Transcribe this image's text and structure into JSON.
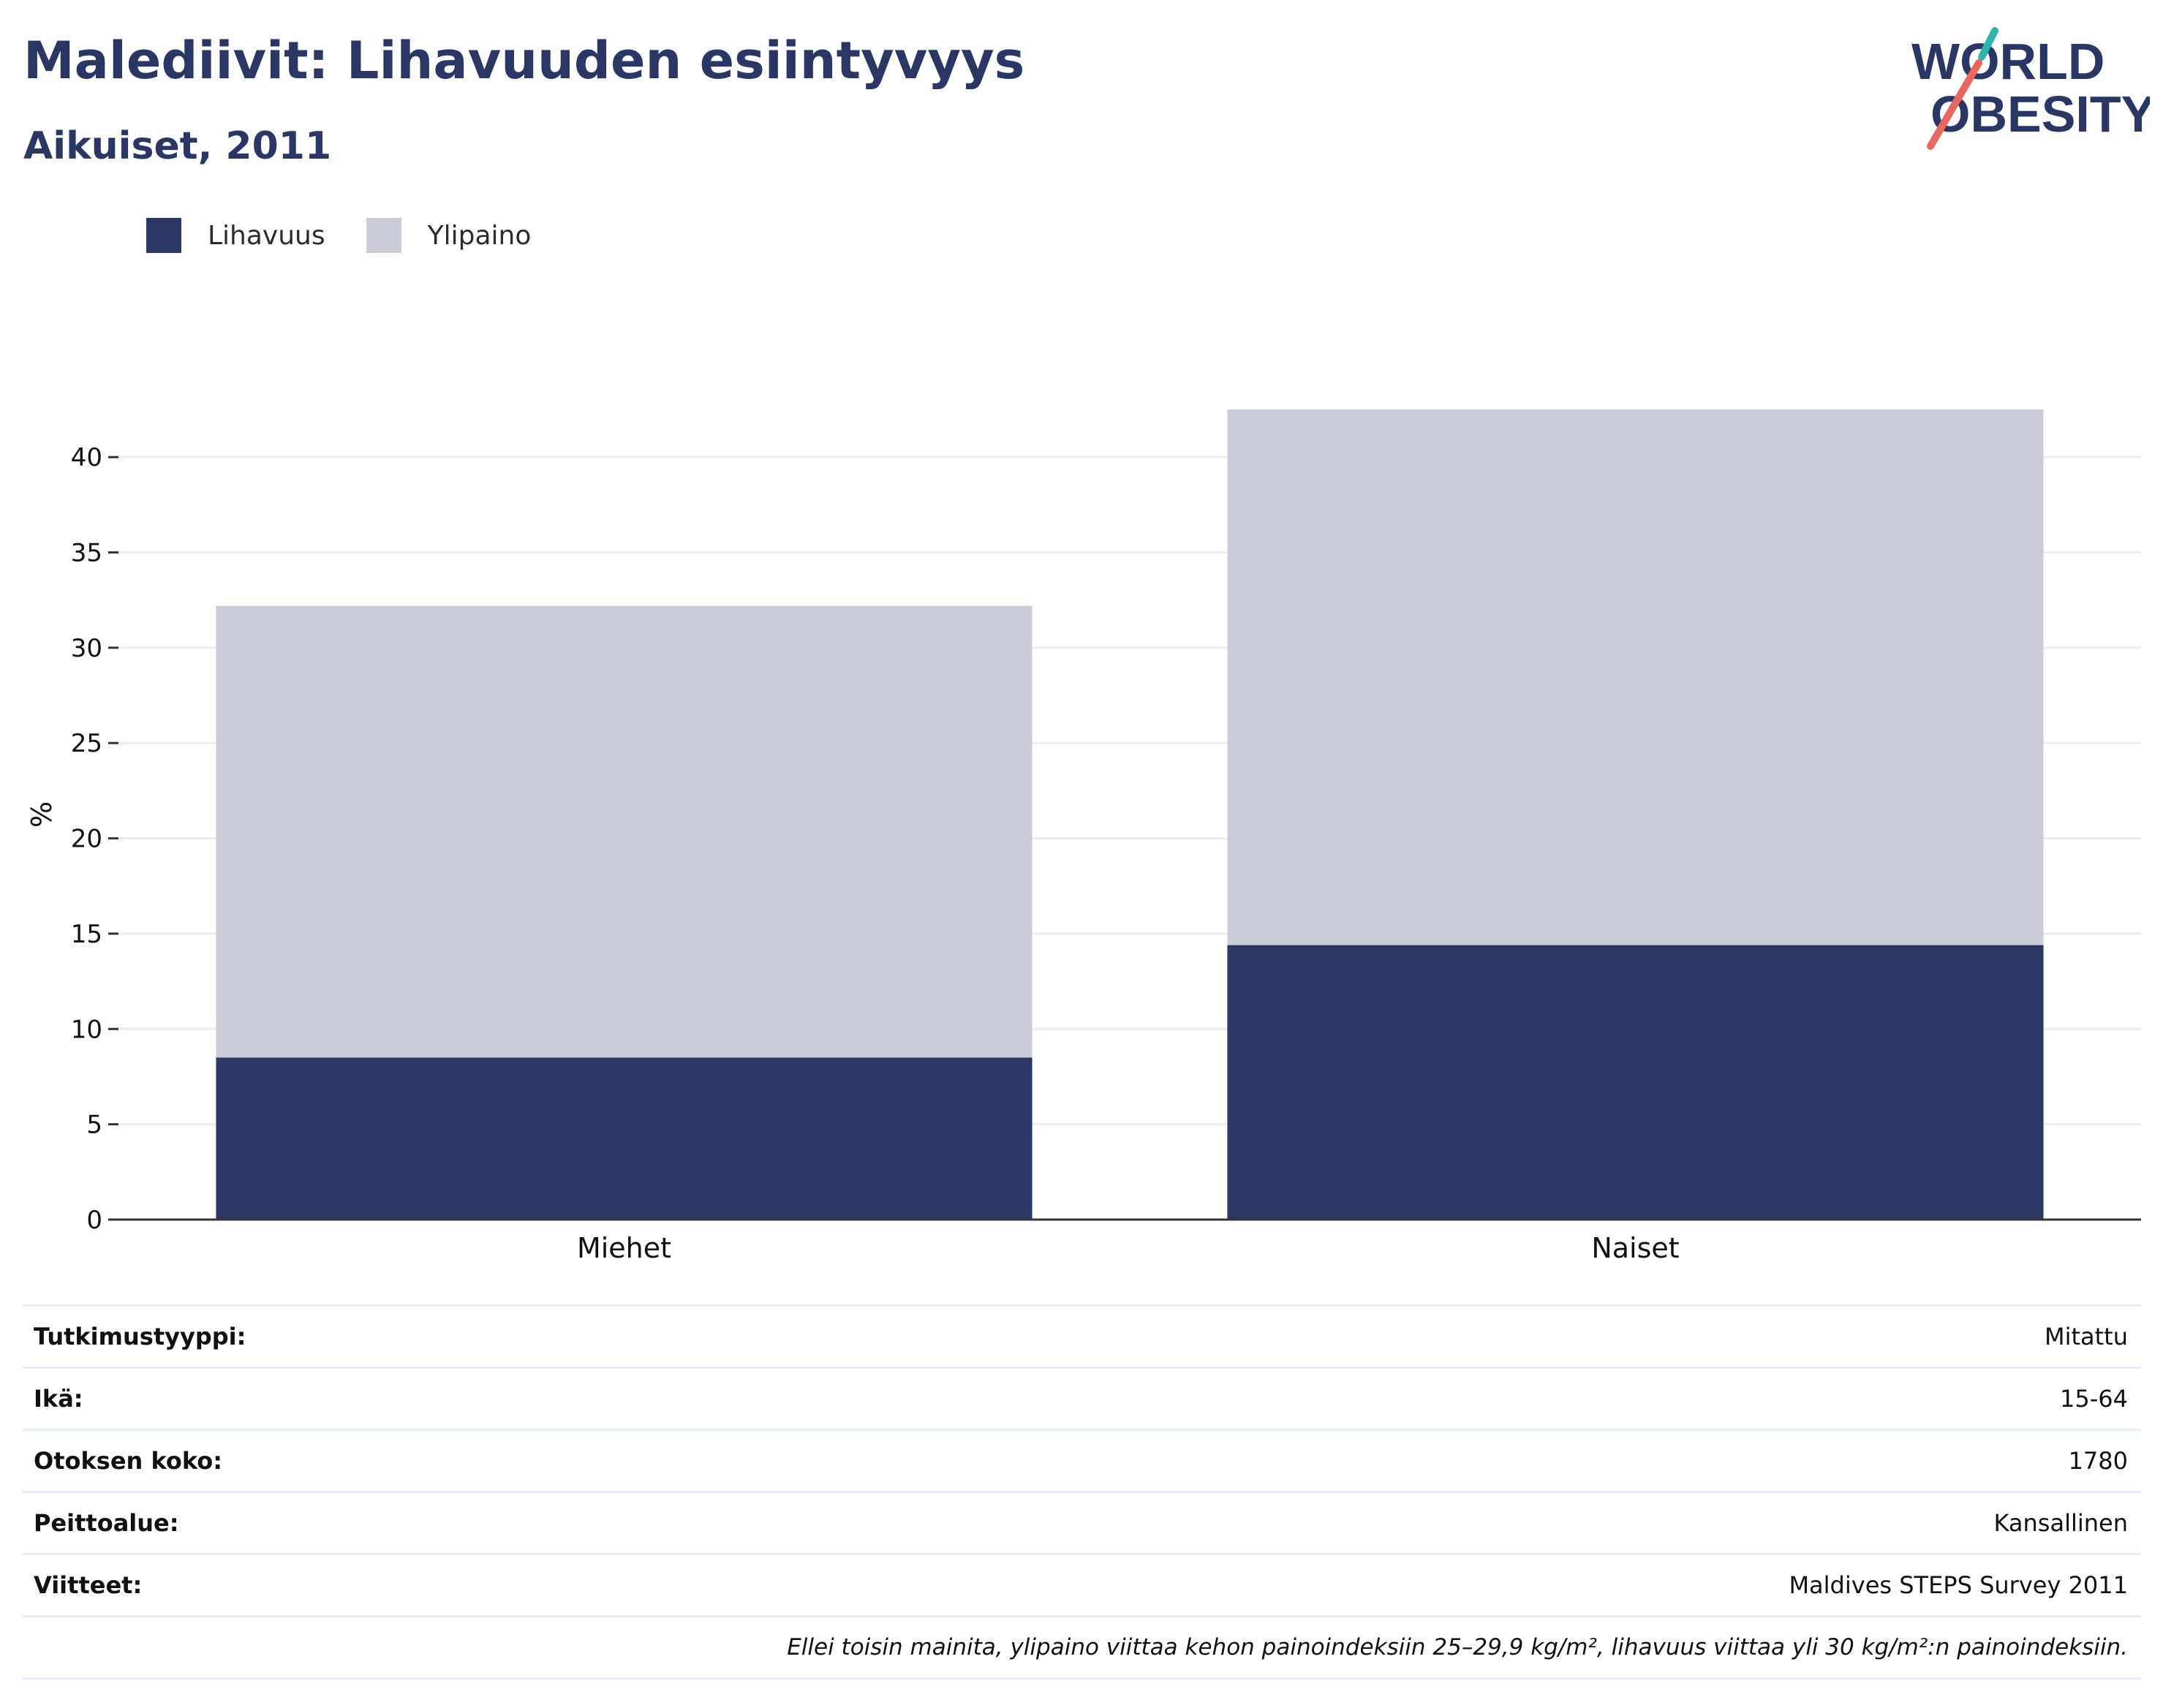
{
  "header": {
    "title": "Malediivit: Lihavuuden esiintyvyys",
    "subtitle": "Aikuiset, 2011"
  },
  "logo": {
    "line1": "WORLD",
    "line2": "OBESITY"
  },
  "chart_data": {
    "type": "bar",
    "stacked": true,
    "categories": [
      "Miehet",
      "Naiset"
    ],
    "series": [
      {
        "name": "Lihavuus",
        "color": "#2a3764",
        "values": [
          8.5,
          14.4
        ]
      },
      {
        "name": "Ylipaino",
        "color": "#cacdd8",
        "values": [
          23.7,
          28.1
        ]
      }
    ],
    "ylabel": "%",
    "ylim": [
      0,
      42.5
    ],
    "yticks": [
      0,
      5,
      10,
      15,
      20,
      25,
      30,
      35,
      40
    ],
    "grid": true,
    "legend_position": "top-left"
  },
  "info": {
    "rows": [
      {
        "label": "Tutkimustyyppi:",
        "value": "Mitattu"
      },
      {
        "label": "Ikä:",
        "value": "15-64"
      },
      {
        "label": "Otoksen koko:",
        "value": "1780"
      },
      {
        "label": "Peittoalue:",
        "value": "Kansallinen"
      },
      {
        "label": "Viitteet:",
        "value": "Maldives STEPS Survey 2011"
      }
    ],
    "note": "Ellei toisin mainita, ylipaino viittaa kehon painoindeksiin 25–29,9 kg/m², lihavuus viittaa yli 30 kg/m²:n painoindeksiin."
  }
}
